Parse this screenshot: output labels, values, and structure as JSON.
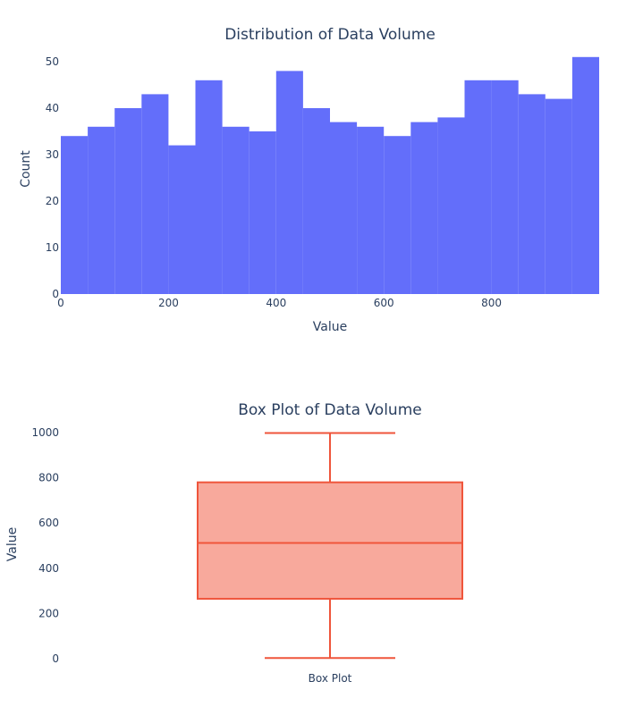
{
  "colors": {
    "hist_bar": "#636efa",
    "box_line": "#ef553b",
    "box_fill": "#f8a99c",
    "text": "#2a3f5f"
  },
  "chart_data": [
    {
      "type": "bar",
      "title": "Distribution of Data Volume",
      "xlabel": "Value",
      "ylabel": "Count",
      "bin_width": 50,
      "bin_starts": [
        0,
        50,
        100,
        150,
        200,
        250,
        300,
        350,
        400,
        450,
        500,
        550,
        600,
        650,
        700,
        750,
        800,
        850,
        900,
        950
      ],
      "values": [
        34,
        36,
        40,
        43,
        32,
        46,
        36,
        35,
        48,
        40,
        37,
        36,
        34,
        37,
        38,
        46,
        46,
        43,
        42,
        51
      ],
      "xlim": [
        0,
        1000
      ],
      "ylim": [
        0,
        50
      ],
      "x_ticks": [
        0,
        200,
        400,
        600,
        800
      ],
      "y_ticks": [
        0,
        10,
        20,
        30,
        40,
        50
      ],
      "grid": false
    },
    {
      "type": "box",
      "title": "Box Plot of Data Volume",
      "xlabel": "",
      "ylabel": "Value",
      "category": "Box Plot",
      "min": 3,
      "q1": 265,
      "median": 512,
      "q3": 780,
      "max": 998,
      "ylim": [
        0,
        1000
      ],
      "y_ticks": [
        0,
        200,
        400,
        600,
        800,
        1000
      ],
      "grid": false
    }
  ]
}
